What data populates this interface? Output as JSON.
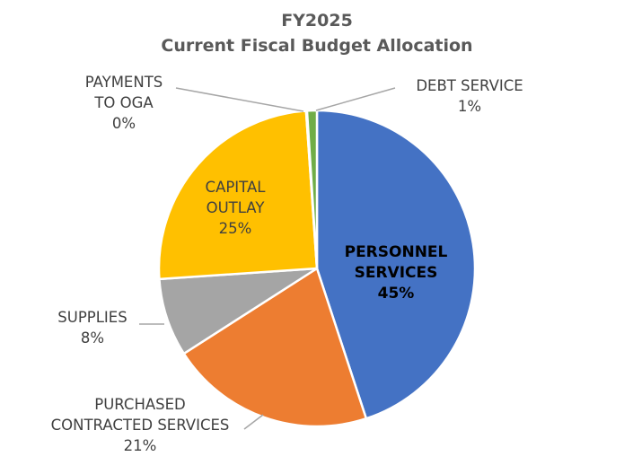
{
  "chart_data": {
    "type": "pie",
    "title": "FY2025",
    "subtitle": "Current Fiscal Budget Allocation",
    "start_angle_deg": 0,
    "direction": "clockwise",
    "slices": [
      {
        "name": "PERSONNEL SERVICES",
        "label_lines": [
          "PERSONNEL",
          "SERVICES"
        ],
        "value": 45,
        "label_value": "45%",
        "color": "#4472C4"
      },
      {
        "name": "PURCHASED CONTRACTED SERVICES",
        "label_lines": [
          "PURCHASED",
          "CONTRACTED SERVICES"
        ],
        "value": 21,
        "label_value": "21%",
        "color": "#ED7D31"
      },
      {
        "name": "SUPPLIES",
        "label_lines": [
          "SUPPLIES"
        ],
        "value": 8,
        "label_value": "8%",
        "color": "#A5A5A5"
      },
      {
        "name": "CAPITAL OUTLAY",
        "label_lines": [
          "CAPITAL",
          "OUTLAY"
        ],
        "value": 25,
        "label_value": "25%",
        "color": "#FFC000"
      },
      {
        "name": "PAYMENTS TO OGA",
        "label_lines": [
          "PAYMENTS",
          "TO OGA"
        ],
        "value": 0.1,
        "label_value": "0%",
        "color": "#5B9BD5"
      },
      {
        "name": "DEBT SERVICE",
        "label_lines": [
          "DEBT SERVICE"
        ],
        "value": 1,
        "label_value": "1%",
        "color": "#70AD47"
      }
    ]
  }
}
